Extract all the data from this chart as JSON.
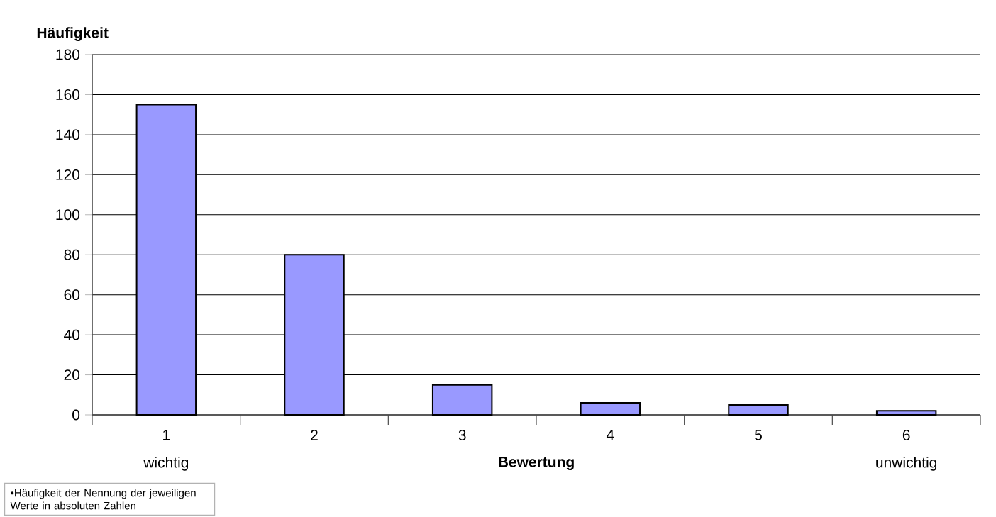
{
  "chart_data": {
    "type": "bar",
    "ylabel": "Häufigkeit",
    "xlabel": "Bewertung",
    "categories": [
      "1",
      "2",
      "3",
      "4",
      "5",
      "6"
    ],
    "values": [
      155,
      80,
      15,
      6,
      5,
      2
    ],
    "color": "#9999ff",
    "ylim": [
      0,
      180
    ],
    "yticks": [
      0,
      20,
      40,
      60,
      80,
      100,
      120,
      140,
      160,
      180
    ],
    "grid": "y",
    "annotations": [
      "wichtig",
      "unwichtig",
      "•Häufigkeit der Nennung der jeweiligen Werte in absoluten Zahlen"
    ]
  }
}
